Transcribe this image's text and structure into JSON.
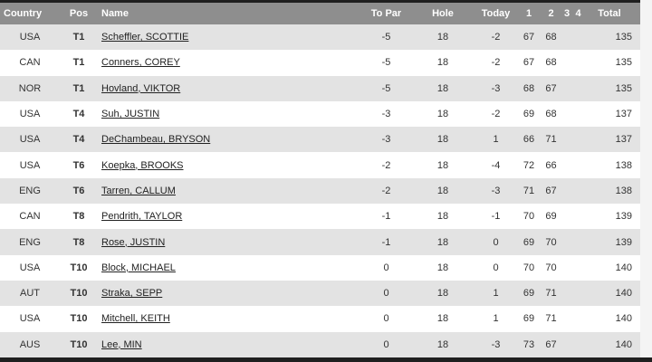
{
  "leaderboard": {
    "columns": [
      {
        "key": "country",
        "label": "Country"
      },
      {
        "key": "pos",
        "label": "Pos"
      },
      {
        "key": "name",
        "label": "Name"
      },
      {
        "key": "to_par",
        "label": "To Par"
      },
      {
        "key": "hole",
        "label": "Hole"
      },
      {
        "key": "today",
        "label": "Today"
      },
      {
        "key": "r1",
        "label": "1"
      },
      {
        "key": "r2",
        "label": "2"
      },
      {
        "key": "r3",
        "label": "3"
      },
      {
        "key": "r4",
        "label": "4"
      },
      {
        "key": "total",
        "label": "Total"
      }
    ],
    "rows": [
      {
        "country": "USA",
        "pos": "T1",
        "name": "Scheffler, SCOTTIE",
        "to_par": "-5",
        "hole": "18",
        "today": "-2",
        "r1": "67",
        "r2": "68",
        "r3": "",
        "r4": "",
        "total": "135"
      },
      {
        "country": "CAN",
        "pos": "T1",
        "name": "Conners, COREY",
        "to_par": "-5",
        "hole": "18",
        "today": "-2",
        "r1": "67",
        "r2": "68",
        "r3": "",
        "r4": "",
        "total": "135"
      },
      {
        "country": "NOR",
        "pos": "T1",
        "name": "Hovland, VIKTOR",
        "to_par": "-5",
        "hole": "18",
        "today": "-3",
        "r1": "68",
        "r2": "67",
        "r3": "",
        "r4": "",
        "total": "135"
      },
      {
        "country": "USA",
        "pos": "T4",
        "name": "Suh, JUSTIN",
        "to_par": "-3",
        "hole": "18",
        "today": "-2",
        "r1": "69",
        "r2": "68",
        "r3": "",
        "r4": "",
        "total": "137"
      },
      {
        "country": "USA",
        "pos": "T4",
        "name": "DeChambeau, BRYSON",
        "to_par": "-3",
        "hole": "18",
        "today": "1",
        "r1": "66",
        "r2": "71",
        "r3": "",
        "r4": "",
        "total": "137"
      },
      {
        "country": "USA",
        "pos": "T6",
        "name": "Koepka, BROOKS",
        "to_par": "-2",
        "hole": "18",
        "today": "-4",
        "r1": "72",
        "r2": "66",
        "r3": "",
        "r4": "",
        "total": "138"
      },
      {
        "country": "ENG",
        "pos": "T6",
        "name": "Tarren, CALLUM",
        "to_par": "-2",
        "hole": "18",
        "today": "-3",
        "r1": "71",
        "r2": "67",
        "r3": "",
        "r4": "",
        "total": "138"
      },
      {
        "country": "CAN",
        "pos": "T8",
        "name": "Pendrith, TAYLOR",
        "to_par": "-1",
        "hole": "18",
        "today": "-1",
        "r1": "70",
        "r2": "69",
        "r3": "",
        "r4": "",
        "total": "139"
      },
      {
        "country": "ENG",
        "pos": "T8",
        "name": "Rose, JUSTIN",
        "to_par": "-1",
        "hole": "18",
        "today": "0",
        "r1": "69",
        "r2": "70",
        "r3": "",
        "r4": "",
        "total": "139"
      },
      {
        "country": "USA",
        "pos": "T10",
        "name": "Block, MICHAEL",
        "to_par": "0",
        "hole": "18",
        "today": "0",
        "r1": "70",
        "r2": "70",
        "r3": "",
        "r4": "",
        "total": "140"
      },
      {
        "country": "AUT",
        "pos": "T10",
        "name": "Straka, SEPP",
        "to_par": "0",
        "hole": "18",
        "today": "1",
        "r1": "69",
        "r2": "71",
        "r3": "",
        "r4": "",
        "total": "140"
      },
      {
        "country": "USA",
        "pos": "T10",
        "name": "Mitchell, KEITH",
        "to_par": "0",
        "hole": "18",
        "today": "1",
        "r1": "69",
        "r2": "71",
        "r3": "",
        "r4": "",
        "total": "140"
      },
      {
        "country": "AUS",
        "pos": "T10",
        "name": "Lee, MIN",
        "to_par": "0",
        "hole": "18",
        "today": "-3",
        "r1": "73",
        "r2": "67",
        "r3": "",
        "r4": "",
        "total": "140"
      }
    ]
  },
  "colors": {
    "header_bg": "#8e8e8e",
    "row_alt_bg": "#e3e3e3",
    "row_bg": "#ffffff",
    "top_bar": "#1f1f1f",
    "bottom_bar": "#1f1f1f",
    "page_bg": "#f4f4f4"
  }
}
